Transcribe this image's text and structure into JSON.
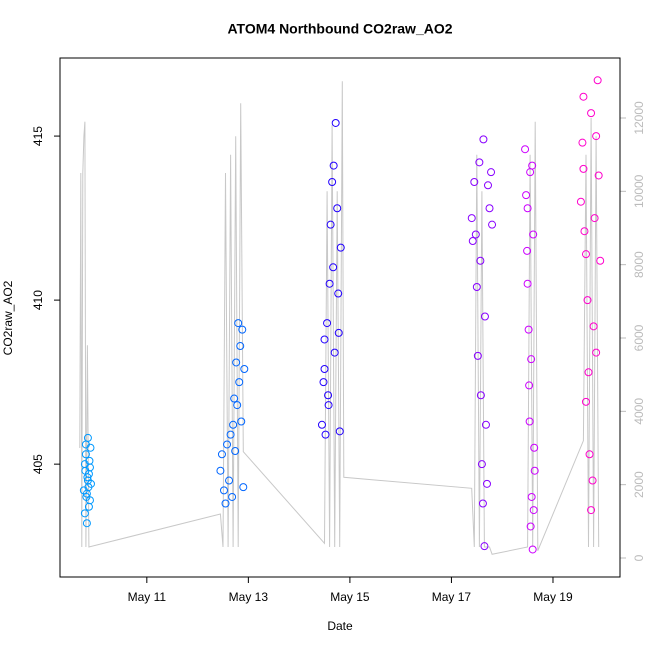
{
  "chart_data": {
    "type": "scatter",
    "title": "ATOM4 Northbound CO2raw_AO2",
    "x_label": "Date",
    "y_label": "CO2raw_AO2",
    "xlim": [
      9.29,
      20.32
    ],
    "ylim": [
      401.56,
      417.38
    ],
    "y2lim": [
      -518,
      13636
    ],
    "xticks": [
      {
        "value": 11,
        "label": "May 11"
      },
      {
        "value": 13,
        "label": "May 13"
      },
      {
        "value": 15,
        "label": "May 15"
      },
      {
        "value": 17,
        "label": "May 17"
      },
      {
        "value": 19,
        "label": "May 19"
      }
    ],
    "yticks": [
      405,
      410,
      415
    ],
    "y2ticks": [
      0,
      2000,
      4000,
      6000,
      8000,
      10000,
      12000
    ],
    "series": [
      {
        "mode": "line",
        "axis": "y2",
        "color": "#c8c8c8",
        "x": [
          9.68,
          9.7,
          9.72,
          9.74,
          9.76,
          9.78,
          9.8,
          9.83,
          9.86,
          12.45,
          12.5,
          12.55,
          12.6,
          12.65,
          12.7,
          12.75,
          12.8,
          12.85,
          12.9,
          14.5,
          14.55,
          14.6,
          14.65,
          14.7,
          14.75,
          14.8,
          14.85,
          14.88,
          17.4,
          17.45,
          17.5,
          17.55,
          17.6,
          17.65,
          17.75,
          17.8,
          18.5,
          18.55,
          18.6,
          18.65,
          18.7,
          19.6,
          19.65,
          19.7,
          19.75,
          19.8,
          19.85,
          19.9
        ],
        "values": [
          3000,
          10500,
          300,
          10500,
          11500,
          11900,
          300,
          5800,
          300,
          1200,
          300,
          10500,
          300,
          11000,
          300,
          11500,
          300,
          12400,
          2900,
          400,
          10000,
          300,
          11800,
          300,
          10000,
          300,
          13000,
          2200,
          1900,
          300,
          11000,
          300,
          10000,
          300,
          300,
          100,
          300,
          11000,
          300,
          11900,
          200,
          3200,
          11000,
          300,
          12000,
          300,
          11500,
          300
        ]
      },
      {
        "mode": "points",
        "color": "#0099ff",
        "x": [
          9.76,
          9.78,
          9.79,
          9.8,
          9.81,
          9.82,
          9.83,
          9.84,
          9.85,
          9.86,
          9.87,
          9.88,
          9.89,
          9.9,
          9.78,
          9.82,
          9.86,
          9.88,
          9.8,
          9.84
        ],
        "values": [
          404.2,
          403.5,
          404.8,
          405.3,
          404.0,
          403.2,
          404.6,
          405.8,
          404.3,
          403.7,
          405.1,
          404.9,
          405.5,
          404.4,
          405.0,
          404.1,
          404.7,
          403.9,
          405.6,
          404.5
        ]
      },
      {
        "mode": "points",
        "color": "#0066ff",
        "x": [
          12.45,
          12.48,
          12.52,
          12.55,
          12.58,
          12.62,
          12.65,
          12.68,
          12.7,
          12.72,
          12.74,
          12.76,
          12.78,
          12.8,
          12.82,
          12.84,
          12.86,
          12.88,
          12.9,
          12.92
        ],
        "values": [
          404.8,
          405.3,
          404.2,
          403.8,
          405.6,
          404.5,
          405.9,
          404.0,
          406.2,
          407.0,
          405.4,
          408.1,
          406.8,
          409.3,
          407.5,
          408.6,
          406.3,
          409.1,
          404.3,
          407.9
        ]
      },
      {
        "mode": "points",
        "color": "#2200ff",
        "x": [
          14.45,
          14.48,
          14.5,
          14.52,
          14.55,
          14.57,
          14.6,
          14.62,
          14.65,
          14.67,
          14.7,
          14.72,
          14.75,
          14.77,
          14.8,
          14.82,
          14.5,
          14.58,
          14.68,
          14.78
        ],
        "values": [
          406.2,
          407.5,
          408.8,
          405.9,
          409.3,
          407.1,
          410.5,
          412.3,
          413.6,
          411.0,
          408.4,
          415.4,
          412.8,
          410.2,
          406.0,
          411.6,
          407.9,
          406.8,
          414.1,
          409.0
        ]
      },
      {
        "mode": "points",
        "color": "#8800ff",
        "x": [
          17.4,
          17.42,
          17.45,
          17.48,
          17.5,
          17.52,
          17.55,
          17.58,
          17.6,
          17.62,
          17.65,
          17.68,
          17.7,
          17.72,
          17.75,
          17.78,
          17.8,
          17.63,
          17.66,
          17.57
        ],
        "values": [
          412.5,
          411.8,
          413.6,
          412.0,
          410.4,
          408.3,
          414.2,
          407.1,
          405.0,
          403.8,
          402.5,
          406.2,
          404.4,
          413.5,
          412.8,
          413.9,
          412.3,
          414.9,
          409.5,
          411.2
        ]
      },
      {
        "mode": "points",
        "color": "#cc00ff",
        "x": [
          18.45,
          18.47,
          18.49,
          18.5,
          18.52,
          18.54,
          18.55,
          18.57,
          18.58,
          18.6,
          18.62,
          18.64,
          18.5,
          18.53,
          18.56,
          18.59,
          18.61,
          18.63
        ],
        "values": [
          414.6,
          413.2,
          411.5,
          412.8,
          409.1,
          406.3,
          413.9,
          408.2,
          404.0,
          402.4,
          403.6,
          404.8,
          410.5,
          407.4,
          403.1,
          414.1,
          412.0,
          405.5
        ]
      },
      {
        "mode": "points",
        "color": "#ff00cc",
        "x": [
          19.55,
          19.58,
          19.6,
          19.62,
          19.65,
          19.68,
          19.7,
          19.72,
          19.75,
          19.78,
          19.8,
          19.82,
          19.85,
          19.88,
          19.9,
          19.93,
          19.65,
          19.75,
          19.85,
          19.6
        ],
        "values": [
          413.0,
          414.8,
          416.2,
          412.1,
          411.4,
          410.0,
          407.8,
          405.3,
          403.6,
          404.5,
          409.2,
          412.5,
          415.0,
          416.7,
          413.8,
          411.2,
          406.9,
          415.7,
          408.4,
          414.0
        ]
      }
    ]
  }
}
